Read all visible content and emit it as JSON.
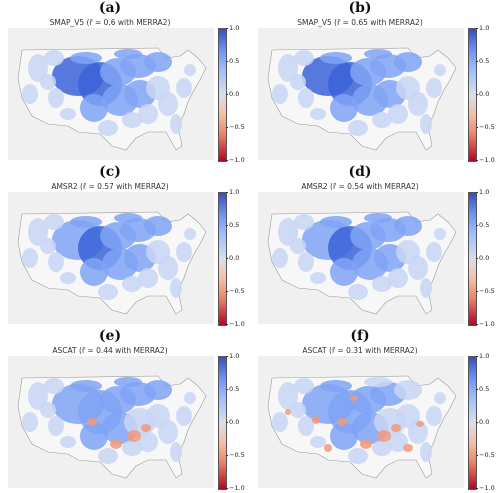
{
  "colorbar": {
    "ticks": [
      "1.0",
      "0.5",
      "0.0",
      "−0.5",
      "−1.0"
    ],
    "vmin": -1.0,
    "vmax": 1.0,
    "cmap": "coolwarm"
  },
  "colors": {
    "background": "#f0f0f0",
    "land_outline": "#9a9a9a",
    "strong_positive": "#3b63d8",
    "mid_positive": "#7fa3f5",
    "weak_positive": "#c8d5f5",
    "negative": "#ee9a7a"
  },
  "panels": [
    {
      "letter": "(a)",
      "title": "SMAP_V5 (r̄ = 0.6 with MERRA2)"
    },
    {
      "letter": "(b)",
      "title": "SMAP_V5 (r̄ = 0.65 with MERRA2)"
    },
    {
      "letter": "(c)",
      "title": "AMSR2 (r̄ = 0.57 with MERRA2)"
    },
    {
      "letter": "(d)",
      "title": "AMSR2 (r̄ = 0.54 with MERRA2)"
    },
    {
      "letter": "(e)",
      "title": "ASCAT (r̄ = 0.44 with MERRA2)"
    },
    {
      "letter": "(f)",
      "title": "ASCAT (r̄ = 0.31 with MERRA2)"
    }
  ],
  "chart_data": [
    {
      "type": "heatmap",
      "panel": "(a)",
      "title": "SMAP_V5 (r̄ = 0.6 with MERRA2)",
      "mean_r": 0.6,
      "colorbar_range": [
        -1.0,
        1.0
      ]
    },
    {
      "type": "heatmap",
      "panel": "(b)",
      "title": "SMAP_V5 (r̄ = 0.65 with MERRA2)",
      "mean_r": 0.65,
      "colorbar_range": [
        -1.0,
        1.0
      ]
    },
    {
      "type": "heatmap",
      "panel": "(c)",
      "title": "AMSR2 (r̄ = 0.57 with MERRA2)",
      "mean_r": 0.57,
      "colorbar_range": [
        -1.0,
        1.0
      ]
    },
    {
      "type": "heatmap",
      "panel": "(d)",
      "title": "AMSR2 (r̄ = 0.54 with MERRA2)",
      "mean_r": 0.54,
      "colorbar_range": [
        -1.0,
        1.0
      ]
    },
    {
      "type": "heatmap",
      "panel": "(e)",
      "title": "ASCAT (r̄ = 0.44 with MERRA2)",
      "mean_r": 0.44,
      "colorbar_range": [
        -1.0,
        1.0
      ]
    },
    {
      "type": "heatmap",
      "panel": "(f)",
      "title": "ASCAT (r̄ = 0.31 with MERRA2)",
      "mean_r": 0.31,
      "colorbar_range": [
        -1.0,
        1.0
      ]
    }
  ]
}
